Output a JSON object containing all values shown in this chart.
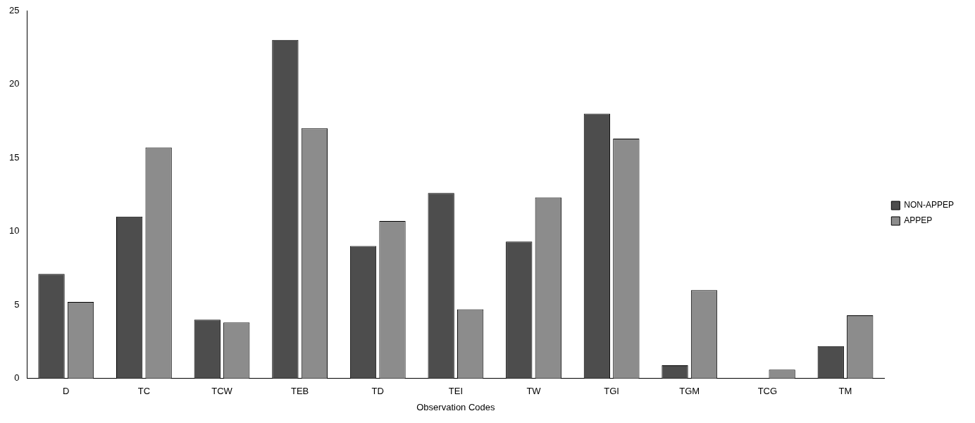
{
  "chart_data": {
    "type": "bar",
    "xlabel": "Observation Codes",
    "categories": [
      "D",
      "TC",
      "TCW",
      "TEB",
      "TD",
      "TEI",
      "TW",
      "TGI",
      "TGM",
      "TCG",
      "TM"
    ],
    "series": [
      {
        "name": "NON-APPEP",
        "color": "#4d4d4d",
        "values": [
          7.1,
          11,
          4,
          23,
          9,
          12.6,
          9.3,
          18,
          0.9,
          0,
          2.2
        ]
      },
      {
        "name": "APPEP",
        "color": "#8c8c8c",
        "values": [
          5.2,
          15.7,
          3.8,
          17,
          10.7,
          4.7,
          12.3,
          16.3,
          6,
          0.6,
          4.3
        ]
      }
    ],
    "ylim": [
      0,
      25
    ],
    "yticks": [
      0,
      5,
      10,
      15,
      20,
      25
    ],
    "grid": false,
    "legend": "right"
  }
}
